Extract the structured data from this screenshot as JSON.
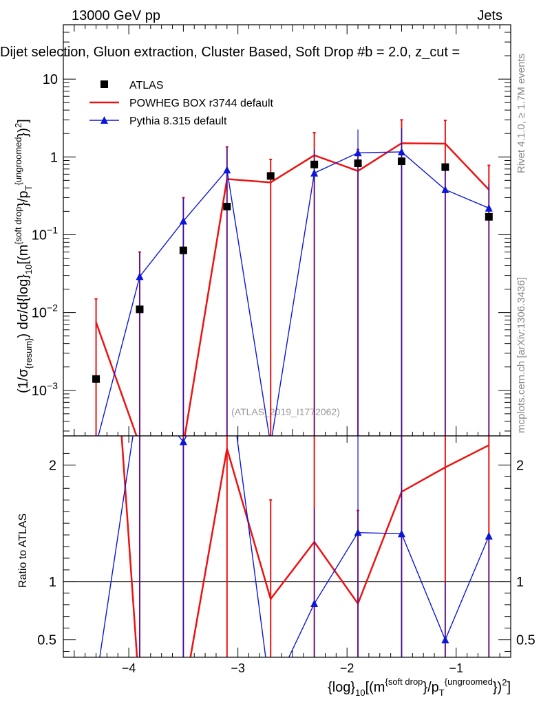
{
  "header": {
    "left": "13000 GeV pp",
    "right": "Jets",
    "title": "Dijet selection, Gluon extraction, Cluster Based, Soft Drop #b = 2.0, z_cut ="
  },
  "side": {
    "rivet": "Rivet 4.1.0, ≥ 1.7M events",
    "mcplots": "mcplots.cern.ch [arXiv:1306.3436]"
  },
  "watermark": "(ATLAS_2019_I1772062)",
  "labels": {
    "y_main_plain": "(1/σ",
    "y_main_sub": "{resum}",
    "y_main_mid": ") dσ/d{log}",
    "y_main_sub2": "10",
    "y_main_tail": "[(m",
    "y_main_sup": "{soft drop",
    "y_main_tail2": "}/p",
    "y_main_sub3": "T",
    "y_main_sup2": "{ungroomed",
    "y_main_end": "})",
    "y_main_sup3": "2",
    "y_main_end2": "]",
    "y_ratio": "Ratio to ATLAS",
    "x_main": "{log}",
    "x_sub": "10",
    "x_mid": "[(m",
    "x_sup": "{soft drop",
    "x_mid2": "}/p",
    "x_sub2": "T",
    "x_sup2": "{ungroomed",
    "x_end": "})",
    "x_sup3": "2",
    "x_end2": "]"
  },
  "legend": [
    {
      "name": "ATLAS",
      "color": "#000000",
      "marker": "square"
    },
    {
      "name": "POWHEG BOX r3744 default",
      "color": "#ee1111",
      "marker": "line"
    },
    {
      "name": "Pythia 8.315 default",
      "color": "#0b16d8",
      "marker": "triangle"
    }
  ],
  "chart_data": {
    "type": "line",
    "xlim": [
      -4.6,
      -0.5
    ],
    "x_ticks": [
      -4,
      -3,
      -2,
      -1
    ],
    "x_tick_labels": [
      "−4",
      "−3",
      "−2",
      "−1"
    ],
    "main": {
      "yscale": "log",
      "ylim": [
        0.00026,
        50
      ],
      "y_ticks": [
        0.001,
        0.01,
        0.1,
        1,
        10
      ],
      "y_tick_labels": [
        "10^-3",
        "10^-2",
        "10^-1",
        "1",
        "10"
      ]
    },
    "ratio": {
      "ylim": [
        0.35,
        2.25
      ],
      "y_ticks": [
        0.5,
        1,
        2
      ],
      "y_tick_labels": [
        "0.5",
        "1",
        "2"
      ]
    },
    "bin_edges": [
      -4.6,
      -4.2,
      -3.8,
      -3.4,
      -3.0,
      -2.6,
      -2.2,
      -1.8,
      -1.4,
      -1.0,
      -0.5
    ],
    "series": [
      {
        "name": "ATLAS",
        "x": [
          -4.3,
          -3.9,
          -3.5,
          -3.1,
          -2.7,
          -2.3,
          -1.9,
          -1.5,
          -1.1,
          -0.7
        ],
        "values": [
          0.0014,
          0.011,
          0.063,
          0.23,
          0.57,
          0.8,
          0.83,
          0.88,
          0.74,
          0.17
        ],
        "err_up": [
          0.015,
          0.06,
          0.3,
          1.35,
          0.93,
          1.7,
          1.05,
          1.85,
          2.0,
          0.73
        ],
        "err_down": [
          5e-05,
          5e-05,
          5e-05,
          5e-05,
          5e-05,
          5e-05,
          5e-05,
          5e-05,
          5e-05,
          5e-05
        ]
      },
      {
        "name": "POWHEG BOX r3744 default",
        "values": [
          0.0075,
          0.0002,
          0.0002,
          0.52,
          0.47,
          1.05,
          0.66,
          1.5,
          1.48,
          0.38
        ],
        "err_up": [
          0.015,
          0.06,
          0.3,
          1.35,
          0.93,
          2.05,
          1.25,
          3.0,
          2.95,
          0.78
        ],
        "ratio": [
          5.4,
          0.02,
          0.003,
          2.14,
          0.85,
          1.34,
          0.81,
          1.77,
          1.98,
          2.17
        ],
        "ratio_err_up": [
          9,
          9,
          9,
          9,
          1.7,
          9,
          1.61,
          9,
          9,
          9
        ]
      },
      {
        "name": "Pythia 8.315 default",
        "x": [
          -4.3,
          -3.9,
          -3.5,
          -3.1,
          -2.7,
          -2.3,
          -1.9,
          -1.5,
          -1.1,
          -0.7
        ],
        "values": [
          0.0002,
          0.029,
          0.15,
          0.68,
          0.0002,
          0.62,
          1.13,
          1.16,
          0.38,
          0.22
        ],
        "err_up": [
          0.0002,
          0.06,
          0.3,
          1.35,
          0.0002,
          1.25,
          2.25,
          2.35,
          0.78,
          0.45
        ],
        "ratio": [
          0.14,
          2.64,
          2.2,
          2.9,
          0.02,
          0.81,
          1.42,
          1.41,
          0.5,
          1.39
        ],
        "ratio_err_up": [
          0.14,
          9,
          2.2,
          2.9,
          0.02,
          1.63,
          9,
          9,
          1.0,
          1.39
        ]
      }
    ]
  }
}
